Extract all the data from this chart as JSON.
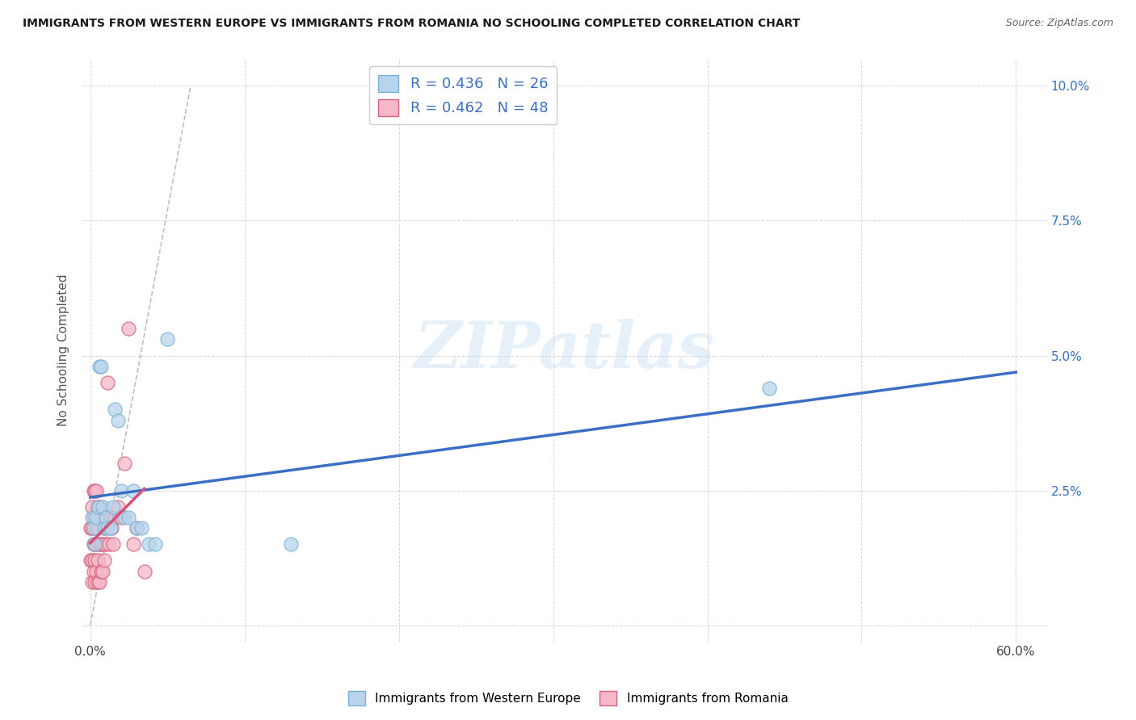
{
  "title": "IMMIGRANTS FROM WESTERN EUROPE VS IMMIGRANTS FROM ROMANIA NO SCHOOLING COMPLETED CORRELATION CHART",
  "source": "Source: ZipAtlas.com",
  "ylabel": "No Schooling Completed",
  "series_blue": {
    "label": "Immigrants from Western Europe",
    "R": 0.436,
    "N": 26,
    "color": "#b8d4ea",
    "edge_color": "#7ab0d4",
    "x": [
      0.001,
      0.002,
      0.003,
      0.004,
      0.005,
      0.006,
      0.007,
      0.008,
      0.009,
      0.01,
      0.011,
      0.013,
      0.015,
      0.016,
      0.018,
      0.02,
      0.022,
      0.025,
      0.028,
      0.03,
      0.033,
      0.038,
      0.042,
      0.05,
      0.13,
      0.44
    ],
    "y": [
      0.02,
      0.018,
      0.015,
      0.02,
      0.022,
      0.048,
      0.048,
      0.022,
      0.018,
      0.02,
      0.018,
      0.018,
      0.022,
      0.04,
      0.038,
      0.025,
      0.02,
      0.02,
      0.025,
      0.018,
      0.018,
      0.015,
      0.015,
      0.053,
      0.015,
      0.044
    ]
  },
  "series_pink": {
    "label": "Immigrants from Romania",
    "R": 0.462,
    "N": 48,
    "color": "#f5b8c8",
    "edge_color": "#d4607a",
    "x": [
      0.0,
      0.0,
      0.001,
      0.001,
      0.001,
      0.001,
      0.002,
      0.002,
      0.002,
      0.002,
      0.003,
      0.003,
      0.003,
      0.003,
      0.003,
      0.004,
      0.004,
      0.004,
      0.004,
      0.005,
      0.005,
      0.005,
      0.005,
      0.006,
      0.006,
      0.006,
      0.007,
      0.007,
      0.007,
      0.008,
      0.008,
      0.009,
      0.009,
      0.01,
      0.01,
      0.011,
      0.012,
      0.013,
      0.014,
      0.015,
      0.016,
      0.018,
      0.02,
      0.022,
      0.025,
      0.028,
      0.03,
      0.035
    ],
    "y": [
      0.012,
      0.018,
      0.008,
      0.012,
      0.018,
      0.022,
      0.01,
      0.015,
      0.02,
      0.025,
      0.008,
      0.012,
      0.015,
      0.02,
      0.025,
      0.01,
      0.015,
      0.018,
      0.025,
      0.008,
      0.012,
      0.018,
      0.022,
      0.008,
      0.015,
      0.022,
      0.01,
      0.015,
      0.02,
      0.01,
      0.015,
      0.012,
      0.018,
      0.015,
      0.02,
      0.045,
      0.015,
      0.02,
      0.018,
      0.015,
      0.02,
      0.022,
      0.02,
      0.03,
      0.055,
      0.015,
      0.018,
      0.01
    ]
  },
  "xlim": [
    -0.005,
    0.62
  ],
  "ylim": [
    -0.003,
    0.105
  ],
  "xtick_positions": [
    0.0,
    0.1,
    0.2,
    0.3,
    0.4,
    0.5,
    0.6
  ],
  "xtick_labels_show": [
    true,
    false,
    false,
    false,
    false,
    false,
    true
  ],
  "xtick_labels": [
    "0.0%",
    "",
    "",
    "",
    "",
    "",
    "60.0%"
  ],
  "yticks": [
    0.0,
    0.025,
    0.05,
    0.075,
    0.1
  ],
  "ytick_labels": [
    "",
    "2.5%",
    "5.0%",
    "7.5%",
    "10.0%"
  ],
  "background_color": "#ffffff",
  "grid_color": "#cccccc",
  "watermark_text": "ZIPatlas",
  "reg_line_blue_color": "#3a6fc4",
  "reg_line_pink_color": "#d4507a",
  "ref_line_color": "#b0b0b0",
  "legend_text_color": "#3a6fc4",
  "legend_N_color": "#228B22"
}
